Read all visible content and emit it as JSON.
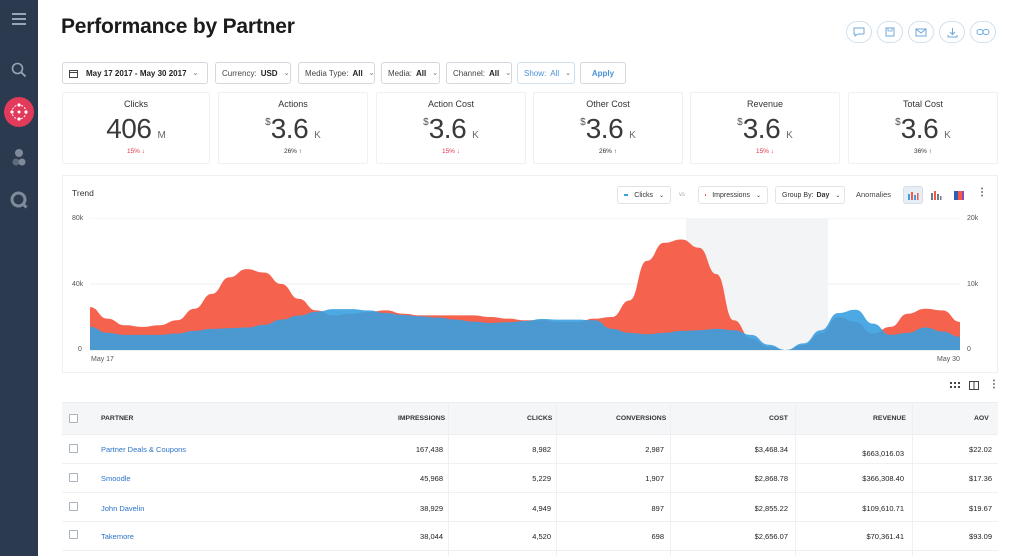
{
  "page": {
    "title": "Performance by Partner"
  },
  "header_actions": [
    "comment-icon",
    "save-icon",
    "email-icon",
    "download-icon",
    "link-icon"
  ],
  "sidebar": {
    "items": [
      "menu-icon",
      "search-icon",
      "partners-icon",
      "users-icon",
      "query-icon"
    ],
    "active": "partners-icon",
    "active_color": "#e23a5b"
  },
  "filters": {
    "date_range": "May 17 2017 - May 30 2017",
    "currency_label": "Currency:",
    "currency_value": "USD",
    "media_type_label": "Media Type:",
    "media_type_value": "All",
    "media_label": "Media:",
    "media_value": "All",
    "channel_label": "Channel:",
    "channel_value": "All",
    "show_label": "Show:",
    "show_value": "All",
    "apply_label": "Apply"
  },
  "kpis": [
    {
      "label": "Clicks",
      "currency": "",
      "value": "406",
      "unit": "M",
      "delta": "15%",
      "direction": "down"
    },
    {
      "label": "Actions",
      "currency": "$",
      "value": "3.6",
      "unit": "K",
      "delta": "26%",
      "direction": "up"
    },
    {
      "label": "Action Cost",
      "currency": "$",
      "value": "3.6",
      "unit": "K",
      "delta": "15%",
      "direction": "down"
    },
    {
      "label": "Other Cost",
      "currency": "$",
      "value": "3.6",
      "unit": "K",
      "delta": "26%",
      "direction": "up"
    },
    {
      "label": "Revenue",
      "currency": "$",
      "value": "3.6",
      "unit": "K",
      "delta": "15%",
      "direction": "down"
    },
    {
      "label": "Total Cost",
      "currency": "$",
      "value": "3.6",
      "unit": "K",
      "delta": "36%",
      "direction": "up"
    }
  ],
  "trend": {
    "title": "Trend",
    "metric_a": "Clicks",
    "vs": "vs",
    "metric_b": "Impressions",
    "group_by_label": "Group By:",
    "group_by_value": "Day",
    "anomalies_label": "Anomalies",
    "metric_a_color": "#3aa0e0",
    "metric_b_color": "#f45a45"
  },
  "chart_data": {
    "type": "area",
    "x_start_label": "May 17",
    "x_end_label": "May 30",
    "x": [
      0,
      2,
      4,
      6,
      8,
      10,
      12,
      14,
      16,
      18,
      20,
      22,
      24,
      26,
      28,
      30,
      32,
      34,
      36,
      38,
      40,
      42,
      44,
      46,
      48,
      50,
      52,
      54,
      56,
      58,
      60,
      62,
      64,
      66,
      68,
      70,
      72,
      74,
      76,
      78,
      80,
      82,
      84,
      86,
      88,
      90,
      92,
      94,
      96,
      98,
      100
    ],
    "series": [
      {
        "name": "Impressions",
        "axis": "left",
        "color": "#f45a45",
        "values": [
          26,
          19,
          15,
          14,
          15,
          18,
          25,
          34,
          44,
          49,
          47,
          40,
          31,
          24,
          21,
          22,
          23,
          24,
          22,
          21,
          21,
          21,
          21,
          20,
          19,
          18,
          18,
          17,
          17,
          19,
          20,
          30,
          54,
          65,
          67,
          62,
          46,
          18,
          7,
          2,
          0,
          3,
          10,
          20,
          17,
          10,
          14,
          22,
          25,
          24,
          17
        ]
      },
      {
        "name": "Clicks",
        "axis": "right",
        "color": "#3aa0e0",
        "values": [
          3.5,
          2.6,
          2.3,
          2.3,
          2.3,
          2.5,
          2.9,
          3.2,
          3.3,
          3.4,
          3.8,
          4.6,
          5.2,
          5.8,
          6.2,
          6.2,
          6.0,
          5.6,
          5.3,
          5.1,
          4.9,
          4.6,
          4.3,
          4.1,
          4.2,
          4.4,
          4.7,
          4.6,
          4.6,
          4.5,
          3.2,
          2.6,
          2.4,
          2.6,
          2.9,
          3.0,
          3.2,
          3.0,
          2.3,
          0.8,
          0.0,
          1.0,
          3.0,
          5.6,
          6.1,
          4.0,
          2.3,
          2.6,
          3.4,
          2.8,
          2.0
        ]
      }
    ],
    "y_left": {
      "ticks": [
        "0",
        "40k",
        "80k"
      ],
      "ylim": [
        0,
        80
      ]
    },
    "y_right": {
      "ticks": [
        "0",
        "10k",
        "20k"
      ],
      "ylim": [
        0,
        20
      ]
    }
  },
  "table": {
    "columns": [
      "PARTNER",
      "IMPRESSIONS",
      "CLICKS",
      "CONVERSIONS",
      "COST",
      "REVENUE",
      "AOV"
    ],
    "rows": [
      [
        "Partner Deals & Coupons",
        "167,438",
        "8,982",
        "2,987",
        "$3,468.34",
        "$663,016.03",
        "$22.02"
      ],
      [
        "Smoodle",
        "45,968",
        "5,229",
        "1,907",
        "$2,868.78",
        "$366,308.40",
        "$17.36"
      ],
      [
        "John Davelin",
        "38,929",
        "4,949",
        "897",
        "$2,855.22",
        "$109,610.71",
        "$19.67"
      ],
      [
        "Takemore",
        "38,044",
        "4,520",
        "698",
        "$2,656.07",
        "$70,361.41",
        "$93.09"
      ]
    ]
  }
}
